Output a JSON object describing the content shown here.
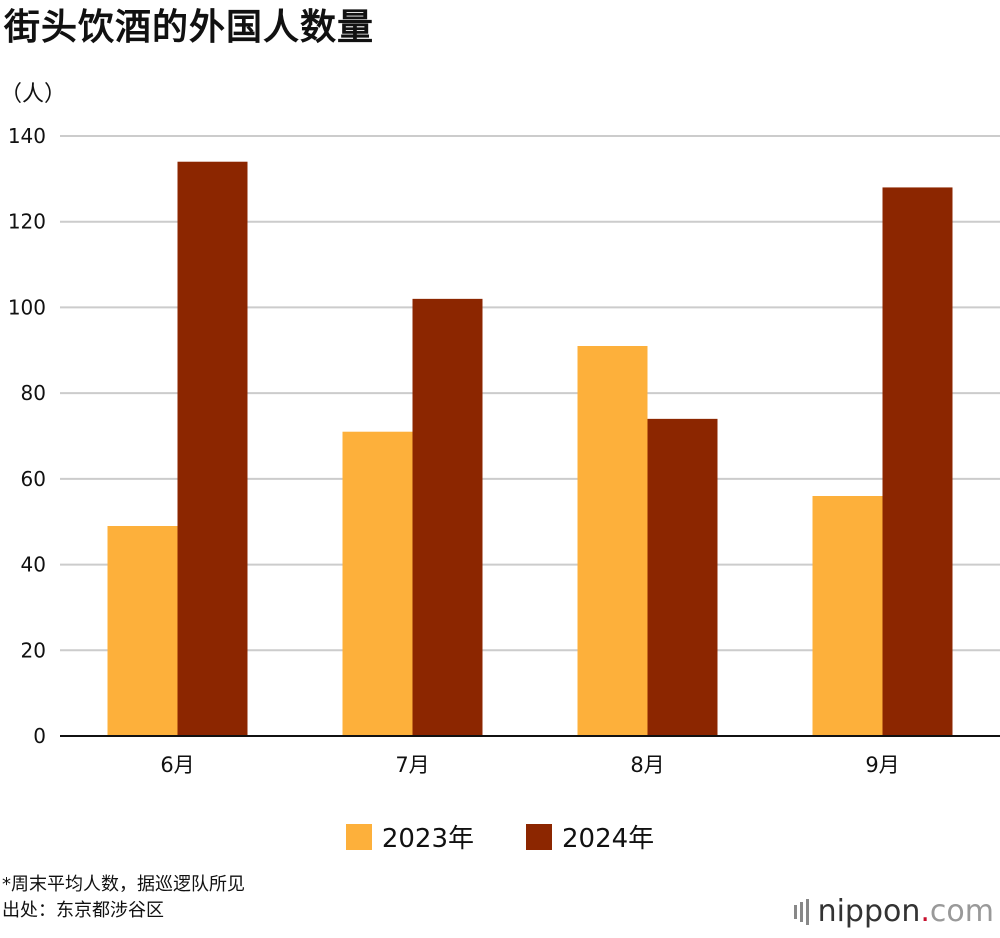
{
  "title": "街头饮酒的外国人数量",
  "unit_label": "（人）",
  "colors": {
    "series_2023": "#FDB03B",
    "series_2024": "#8C2600",
    "grid": "#cccccc",
    "axis": "#111111"
  },
  "chart_data": {
    "type": "bar",
    "title": "街头饮酒的外国人数量",
    "ylabel": "（人）",
    "xlabel": "",
    "categories": [
      "6月",
      "7月",
      "8月",
      "9月"
    ],
    "series": [
      {
        "name": "2023年",
        "values": [
          49,
          71,
          91,
          56
        ]
      },
      {
        "name": "2024年",
        "values": [
          134,
          102,
          74,
          128
        ]
      }
    ],
    "ylim": [
      0,
      140
    ],
    "yticks": [
      0,
      20,
      40,
      60,
      80,
      100,
      120,
      140
    ],
    "grid": true,
    "legend": "bottom-center"
  },
  "legend": {
    "items": [
      "2023年",
      "2024年"
    ]
  },
  "notes": {
    "line1": "*周末平均人数，据巡逻队所见",
    "line2": "出处：东京都涉谷区"
  },
  "brand": {
    "name": "nippon",
    "dot": ".",
    "suffix": "com"
  }
}
